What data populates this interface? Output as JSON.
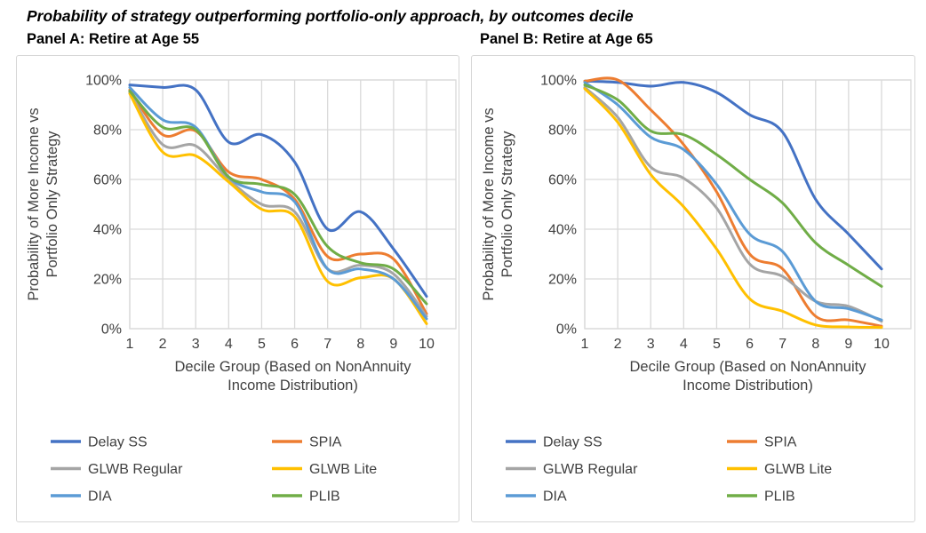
{
  "title": "Probability of strategy outperforming portfolio-only approach, by outcomes decile",
  "y_axis_label_lines": [
    "Probability of More Income vs",
    "Portfolio Only Strategy"
  ],
  "x_axis_label_lines": [
    "Decile Group (Based on NonAnnuity",
    "Income Distribution)"
  ],
  "x_ticks": [
    "1",
    "2",
    "3",
    "4",
    "5",
    "6",
    "7",
    "8",
    "9",
    "10"
  ],
  "y_ticks": [
    "0%",
    "20%",
    "40%",
    "60%",
    "80%",
    "100%"
  ],
  "grid_color": "#d9d9d9",
  "axis_text_color": "#404040",
  "chart_data": [
    {
      "type": "line",
      "title": "Panel A: Retire at Age 55",
      "x": [
        1,
        2,
        3,
        4,
        5,
        6,
        7,
        8,
        9,
        10
      ],
      "xlabel": "Decile Group (Based on NonAnnuity Income Distribution)",
      "ylabel": "Probability of More Income vs Portfolio Only Strategy",
      "ylim": [
        0,
        100
      ],
      "grid": true,
      "series": [
        {
          "name": "Delay SS",
          "color": "#4472C4",
          "values": [
            98,
            97,
            96,
            75,
            78,
            67,
            40,
            47,
            32,
            13
          ]
        },
        {
          "name": "SPIA",
          "color": "#ED7D31",
          "values": [
            96,
            78,
            79.5,
            63,
            60,
            52,
            29,
            30,
            28,
            6
          ]
        },
        {
          "name": "GLWB Regular",
          "color": "#A5A5A5",
          "values": [
            95,
            74,
            73.5,
            60,
            50,
            47,
            24,
            25.5,
            22,
            5
          ]
        },
        {
          "name": "GLWB Lite",
          "color": "#FFC000",
          "values": [
            94.5,
            71,
            69.5,
            59,
            48,
            45,
            19,
            20.5,
            20,
            2
          ]
        },
        {
          "name": "DIA",
          "color": "#5B9BD5",
          "values": [
            97,
            84,
            81,
            61,
            55,
            51,
            24,
            24,
            20,
            4
          ]
        },
        {
          "name": "PLIB",
          "color": "#70AD47",
          "values": [
            95.5,
            81,
            80,
            61,
            58,
            54,
            33,
            26.5,
            24,
            10
          ]
        }
      ]
    },
    {
      "type": "line",
      "title": "Panel B: Retire at Age 65",
      "x": [
        1,
        2,
        3,
        4,
        5,
        6,
        7,
        8,
        9,
        10
      ],
      "xlabel": "Decile Group (Based on NonAnnuity Income Distribution)",
      "ylabel": "Probability of More Income vs Portfolio Only Strategy",
      "ylim": [
        0,
        100
      ],
      "grid": true,
      "series": [
        {
          "name": "Delay SS",
          "color": "#4472C4",
          "values": [
            99.5,
            99,
            97.5,
            99,
            95,
            86,
            79,
            52,
            38,
            24
          ]
        },
        {
          "name": "SPIA",
          "color": "#ED7D31",
          "values": [
            99.5,
            100,
            88,
            74,
            55,
            30,
            24,
            5,
            3.5,
            1
          ]
        },
        {
          "name": "GLWB Regular",
          "color": "#A5A5A5",
          "values": [
            97,
            85,
            65,
            60.5,
            48.5,
            26,
            21,
            11,
            9,
            3
          ]
        },
        {
          "name": "GLWB Lite",
          "color": "#FFC000",
          "values": [
            96.5,
            83,
            62,
            49,
            32,
            12,
            7,
            1.5,
            0.7,
            0.5
          ]
        },
        {
          "name": "DIA",
          "color": "#5B9BD5",
          "values": [
            99,
            90,
            77,
            72,
            58,
            38,
            31,
            11,
            8,
            3.5
          ]
        },
        {
          "name": "PLIB",
          "color": "#70AD47",
          "values": [
            98,
            92,
            79.5,
            78,
            70,
            60,
            50.5,
            34.5,
            25.5,
            17
          ]
        }
      ]
    }
  ]
}
